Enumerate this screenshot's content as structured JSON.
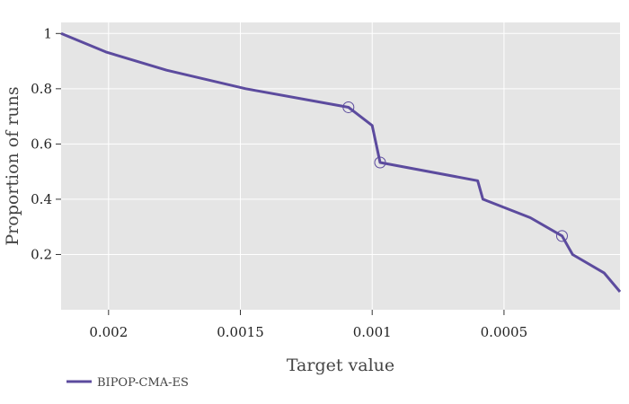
{
  "chart_data": {
    "type": "line",
    "title": "",
    "xlabel": "Target value",
    "ylabel": "Proportion of runs",
    "x_reversed": true,
    "xlim": [
      0.00218,
      6e-05
    ],
    "ylim": [
      0.0,
      1.04
    ],
    "x_ticks": [
      0.002,
      0.0015,
      0.001,
      0.0005
    ],
    "x_tick_labels": [
      "0.002",
      "0.0015",
      "0.001",
      "0.0005"
    ],
    "y_ticks": [
      0.2,
      0.4,
      0.6,
      0.8,
      1
    ],
    "y_tick_labels": [
      "0.2",
      "0.4",
      "0.6",
      "0.8",
      "1"
    ],
    "grid": true,
    "background": "#e5e5e5",
    "grid_color": "#ffffff",
    "legend_position": "bottom-left",
    "series": [
      {
        "name": "BIPOP-CMA-ES",
        "color": "#5c4b9e",
        "x": [
          0.00218,
          0.00201,
          0.00178,
          0.00148,
          0.00109,
          0.001,
          0.00097,
          0.0006,
          0.00058,
          0.0004,
          0.00028,
          0.00024,
          0.00012,
          6e-05
        ],
        "y": [
          1.0,
          0.933,
          0.867,
          0.8,
          0.733,
          0.667,
          0.533,
          0.467,
          0.4,
          0.333,
          0.267,
          0.2,
          0.133,
          0.065
        ],
        "markers": [
          {
            "x": 0.00109,
            "y": 0.733
          },
          {
            "x": 0.00097,
            "y": 0.533
          },
          {
            "x": 0.00028,
            "y": 0.267
          }
        ]
      }
    ]
  }
}
